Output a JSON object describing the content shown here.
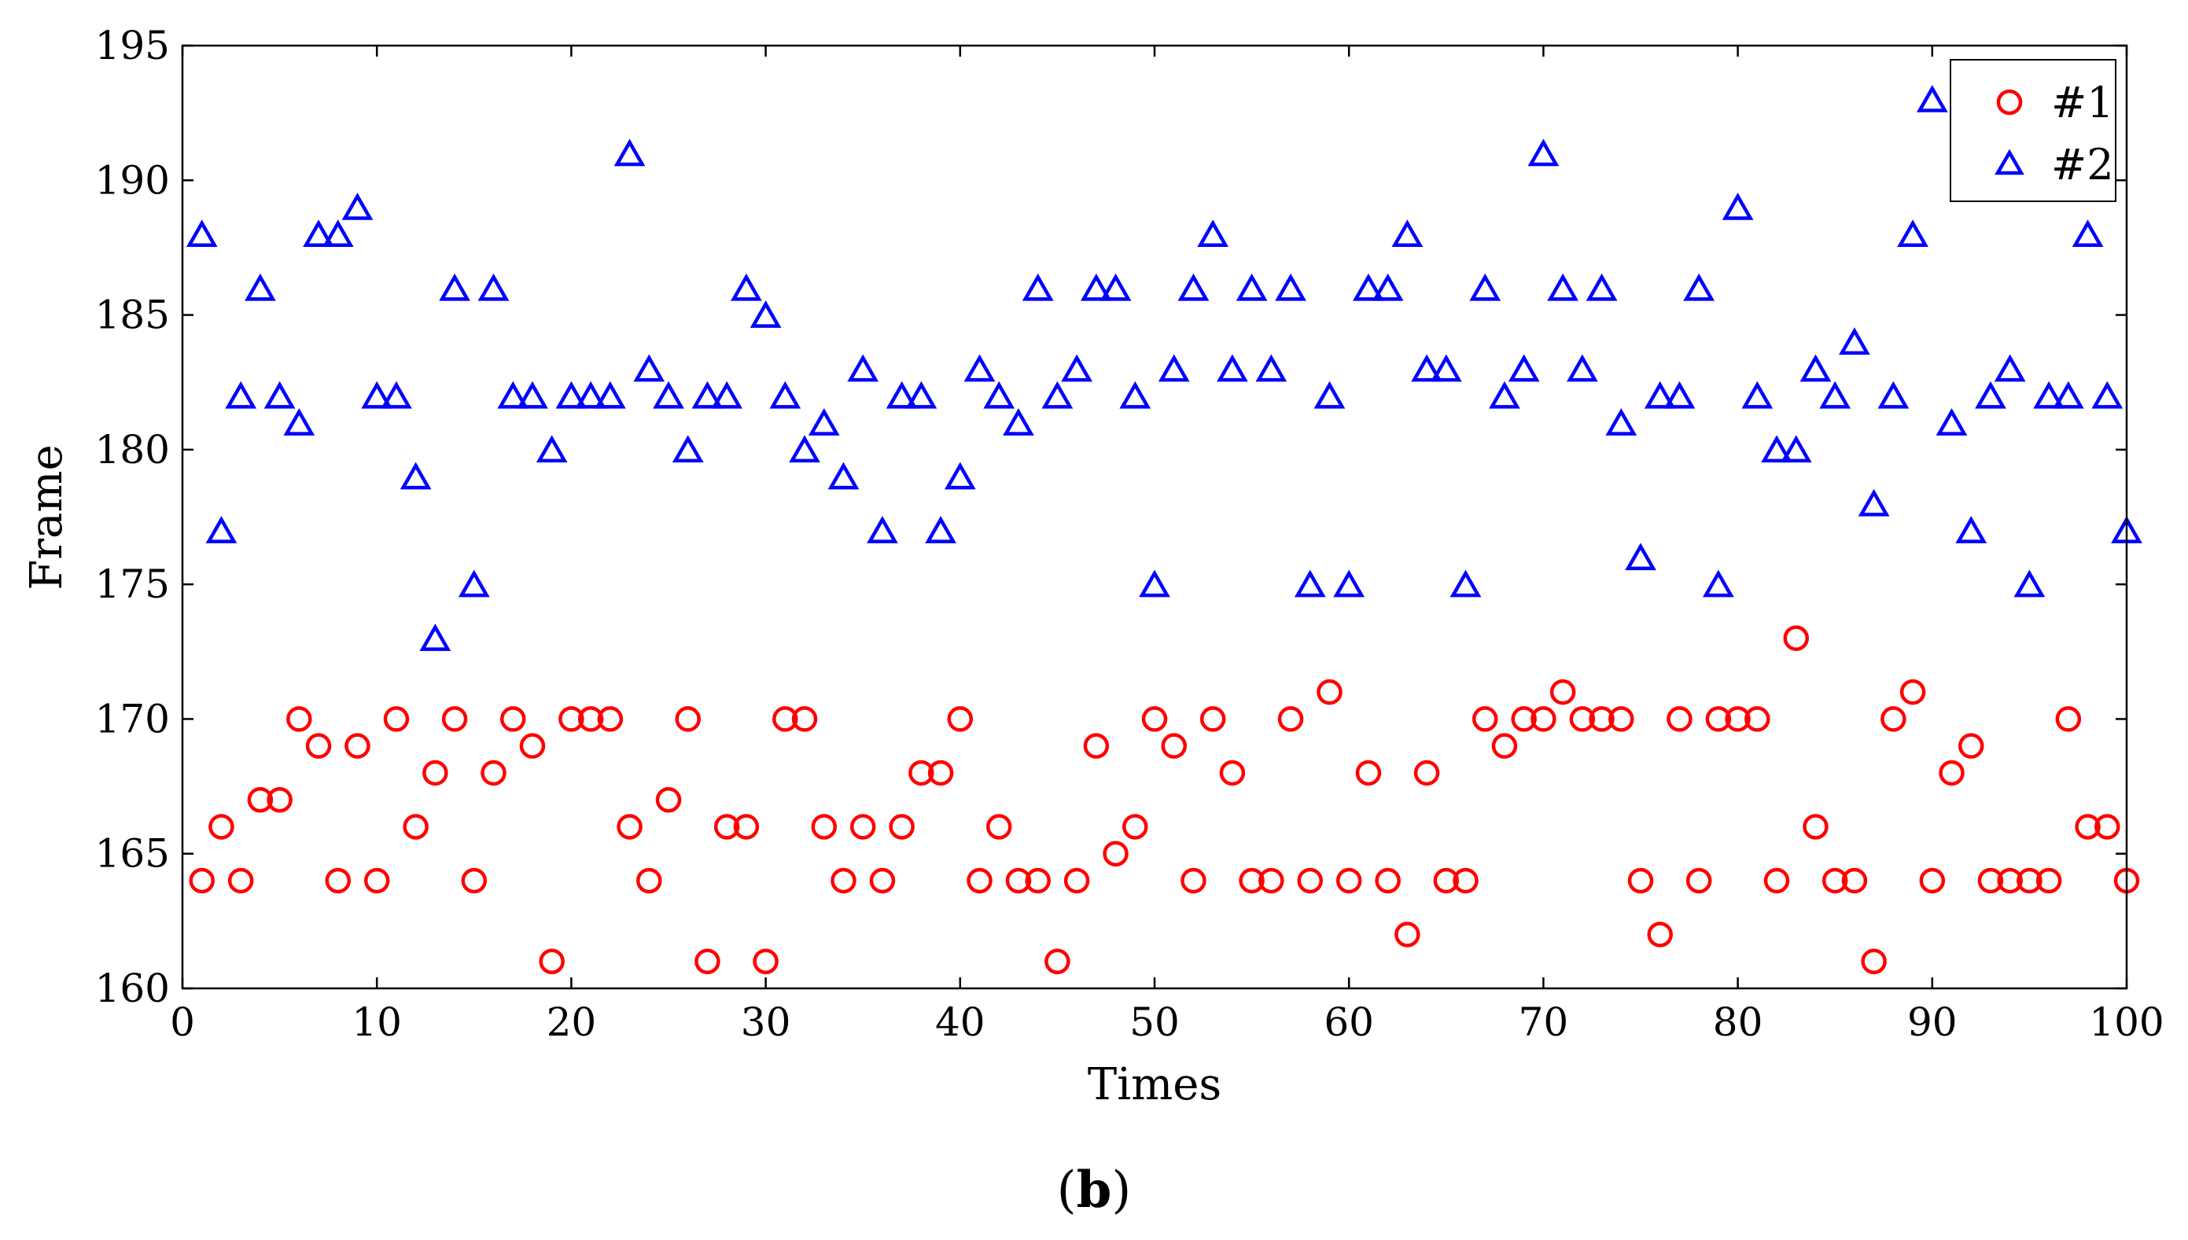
{
  "chart_data": {
    "type": "scatter",
    "title": "",
    "xlabel": "Times",
    "ylabel": "Frame",
    "xlim": [
      0,
      100
    ],
    "ylim": [
      160,
      195
    ],
    "xticks": [
      0,
      10,
      20,
      30,
      40,
      50,
      60,
      70,
      80,
      90,
      100
    ],
    "yticks": [
      160,
      165,
      170,
      175,
      180,
      185,
      190,
      195
    ],
    "grid": false,
    "legend_position": "top-right",
    "series": [
      {
        "name": "#1",
        "marker": "circle",
        "color": "#ff0000",
        "x": [
          1,
          2,
          3,
          4,
          5,
          6,
          7,
          8,
          9,
          10,
          11,
          12,
          13,
          14,
          15,
          16,
          17,
          18,
          19,
          20,
          21,
          22,
          23,
          24,
          25,
          26,
          27,
          28,
          29,
          30,
          31,
          32,
          33,
          34,
          35,
          36,
          37,
          38,
          39,
          40,
          41,
          42,
          43,
          44,
          45,
          46,
          47,
          48,
          49,
          50,
          51,
          52,
          53,
          54,
          55,
          56,
          57,
          58,
          59,
          60,
          61,
          62,
          63,
          64,
          65,
          66,
          67,
          68,
          69,
          70,
          71,
          72,
          73,
          74,
          75,
          76,
          77,
          78,
          79,
          80,
          81,
          82,
          83,
          84,
          85,
          86,
          87,
          88,
          89,
          90,
          91,
          92,
          93,
          94,
          95,
          96,
          97,
          98,
          99,
          100
        ],
        "y": [
          164,
          166,
          164,
          167,
          167,
          170,
          169,
          164,
          169,
          164,
          170,
          166,
          168,
          170,
          164,
          168,
          170,
          169,
          161,
          170,
          170,
          170,
          166,
          164,
          167,
          170,
          161,
          166,
          166,
          161,
          170,
          170,
          166,
          164,
          166,
          164,
          166,
          168,
          168,
          170,
          164,
          166,
          164,
          164,
          161,
          164,
          169,
          165,
          166,
          170,
          169,
          164,
          170,
          168,
          164,
          164,
          170,
          164,
          171,
          164,
          168,
          164,
          162,
          168,
          164,
          164,
          170,
          169,
          170,
          170,
          171,
          170,
          170,
          170,
          164,
          162,
          170,
          164,
          170,
          170,
          170,
          164,
          173,
          166,
          164,
          164,
          161,
          170,
          171,
          164,
          168,
          169,
          164,
          164,
          164,
          164,
          170,
          166,
          166,
          164
        ]
      },
      {
        "name": "#2",
        "marker": "triangle",
        "color": "#0000ff",
        "x": [
          1,
          2,
          3,
          4,
          5,
          6,
          7,
          8,
          9,
          10,
          11,
          12,
          13,
          14,
          15,
          16,
          17,
          18,
          19,
          20,
          21,
          22,
          23,
          24,
          25,
          26,
          27,
          28,
          29,
          30,
          31,
          32,
          33,
          34,
          35,
          36,
          37,
          38,
          39,
          40,
          41,
          42,
          43,
          44,
          45,
          46,
          47,
          48,
          49,
          50,
          51,
          52,
          53,
          54,
          55,
          56,
          57,
          58,
          59,
          60,
          61,
          62,
          63,
          64,
          65,
          66,
          67,
          68,
          69,
          70,
          71,
          72,
          73,
          74,
          75,
          76,
          77,
          78,
          79,
          80,
          81,
          82,
          83,
          84,
          85,
          86,
          87,
          88,
          89,
          90,
          91,
          92,
          93,
          94,
          95,
          96,
          97,
          98,
          99,
          100
        ],
        "y": [
          188,
          177,
          182,
          186,
          182,
          181,
          188,
          188,
          189,
          182,
          182,
          179,
          173,
          186,
          175,
          186,
          182,
          182,
          180,
          182,
          182,
          182,
          191,
          183,
          182,
          180,
          182,
          182,
          186,
          185,
          182,
          180,
          181,
          179,
          183,
          177,
          182,
          182,
          177,
          179,
          183,
          182,
          181,
          186,
          182,
          183,
          186,
          186,
          182,
          175,
          183,
          186,
          188,
          183,
          186,
          183,
          186,
          175,
          182,
          175,
          186,
          186,
          188,
          183,
          183,
          175,
          186,
          182,
          183,
          191,
          186,
          183,
          186,
          181,
          176,
          182,
          182,
          186,
          175,
          189,
          182,
          180,
          180,
          183,
          182,
          184,
          178,
          182,
          188,
          193,
          181,
          177,
          182,
          183,
          175,
          182,
          182,
          188,
          182,
          177
        ]
      }
    ]
  },
  "caption": {
    "open": "(",
    "letter": "b",
    "close": ")"
  }
}
